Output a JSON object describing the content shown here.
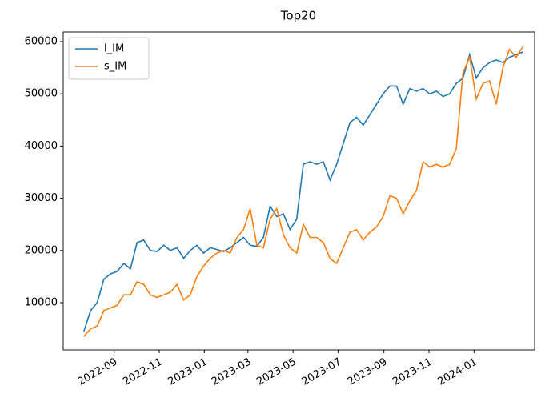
{
  "chart_data": {
    "type": "line",
    "title": "Top20",
    "x": [
      19195,
      19204,
      19213,
      19222,
      19231,
      19240,
      19249,
      19258,
      19267,
      19276,
      19285,
      19294,
      19303,
      19312,
      19321,
      19330,
      19339,
      19348,
      19357,
      19366,
      19375,
      19384,
      19393,
      19402,
      19411,
      19420,
      19429,
      19438,
      19447,
      19456,
      19465,
      19474,
      19483,
      19492,
      19501,
      19510,
      19519,
      19528,
      19537,
      19546,
      19555,
      19564,
      19573,
      19582,
      19591,
      19600,
      19609,
      19618,
      19627,
      19636,
      19645,
      19654,
      19663,
      19672,
      19681,
      19690,
      19699,
      19708,
      19717,
      19726,
      19735,
      19744,
      19753,
      19762,
      19771,
      19780,
      19789
    ],
    "series": [
      {
        "name": "l_IM",
        "color": "#1f77b4",
        "values": [
          4500,
          8500,
          10000,
          14500,
          15500,
          16000,
          17500,
          16500,
          21500,
          22000,
          20000,
          19800,
          21000,
          20000,
          20500,
          18500,
          20000,
          21000,
          19500,
          20500,
          20200,
          19800,
          20500,
          21500,
          22500,
          21000,
          20800,
          22500,
          28500,
          26500,
          27000,
          24000,
          26000,
          36500,
          37000,
          36500,
          37000,
          33500,
          36500,
          40500,
          44500,
          45500,
          44000,
          46000,
          48000,
          50000,
          51500,
          51500,
          48000,
          51000,
          50500,
          51000,
          50000,
          50500,
          49500,
          50000,
          52000,
          53000,
          57500,
          53000,
          55000,
          56000,
          56500,
          56000,
          57000,
          57500,
          58000
        ]
      },
      {
        "name": "s_IM",
        "color": "#ff7f0e",
        "values": [
          3500,
          5000,
          5500,
          8500,
          9000,
          9500,
          11500,
          11500,
          14000,
          13500,
          11500,
          11000,
          11500,
          12000,
          13500,
          10500,
          11500,
          15000,
          17000,
          18500,
          19500,
          20000,
          19500,
          22500,
          24000,
          28000,
          21000,
          20500,
          26000,
          28000,
          23000,
          20500,
          19500,
          25000,
          22500,
          22500,
          21500,
          18500,
          17500,
          20500,
          23500,
          24000,
          22000,
          23500,
          24500,
          26500,
          30500,
          30000,
          27000,
          29500,
          31500,
          37000,
          36000,
          36500,
          36000,
          36500,
          39500,
          54000,
          57000,
          49000,
          52000,
          52500,
          48000,
          55000,
          58500,
          57000,
          59000
        ]
      }
    ],
    "xlim": [
      19167,
      19805
    ],
    "xticks": [
      {
        "value": 19236,
        "label": "2022-09"
      },
      {
        "value": 19297,
        "label": "2022-11"
      },
      {
        "value": 19358,
        "label": "2023-01"
      },
      {
        "value": 19417,
        "label": "2023-03"
      },
      {
        "value": 19478,
        "label": "2023-05"
      },
      {
        "value": 19539,
        "label": "2023-07"
      },
      {
        "value": 19601,
        "label": "2023-09"
      },
      {
        "value": 19662,
        "label": "2023-11"
      },
      {
        "value": 19723,
        "label": "2024-01"
      }
    ],
    "ylim": [
      950,
      61840
    ],
    "yticks": [
      10000,
      20000,
      30000,
      40000,
      50000,
      60000
    ],
    "legend": "upper left"
  }
}
